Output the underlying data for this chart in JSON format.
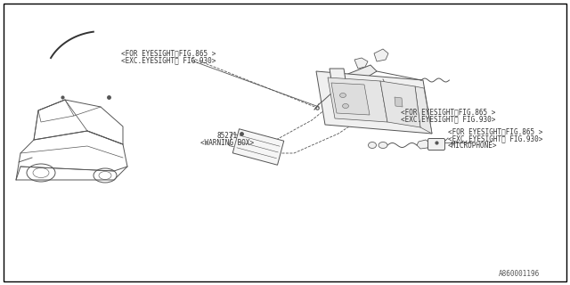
{
  "background_color": "#ffffff",
  "border_color": "#000000",
  "figsize": [
    6.4,
    3.2
  ],
  "dpi": 100,
  "watermark": "A860001196",
  "labels": {
    "warning_box_num": "85271",
    "warning_box": "<WARNING BOX>",
    "eyesight_1a": "<FOR EYESIGHT；FIG.865 >",
    "eyesight_1b": "<EXC.EYESIGHT； FIG.930>",
    "eyesight_2a": "<FOR EYESIGHT；FIG.865 >",
    "eyesight_2b": "<EXC.EYESIGHT； FIG.930>",
    "microphone": "<MICROPHONE>",
    "eyesight_3a": "<FOR EYESIGHT；FIG.865 >",
    "eyesight_3b": "<EXC.EYESIGHT； FIG.930>"
  },
  "font_size": 5.5,
  "line_color": "#555555",
  "drawing_color": "#555555"
}
